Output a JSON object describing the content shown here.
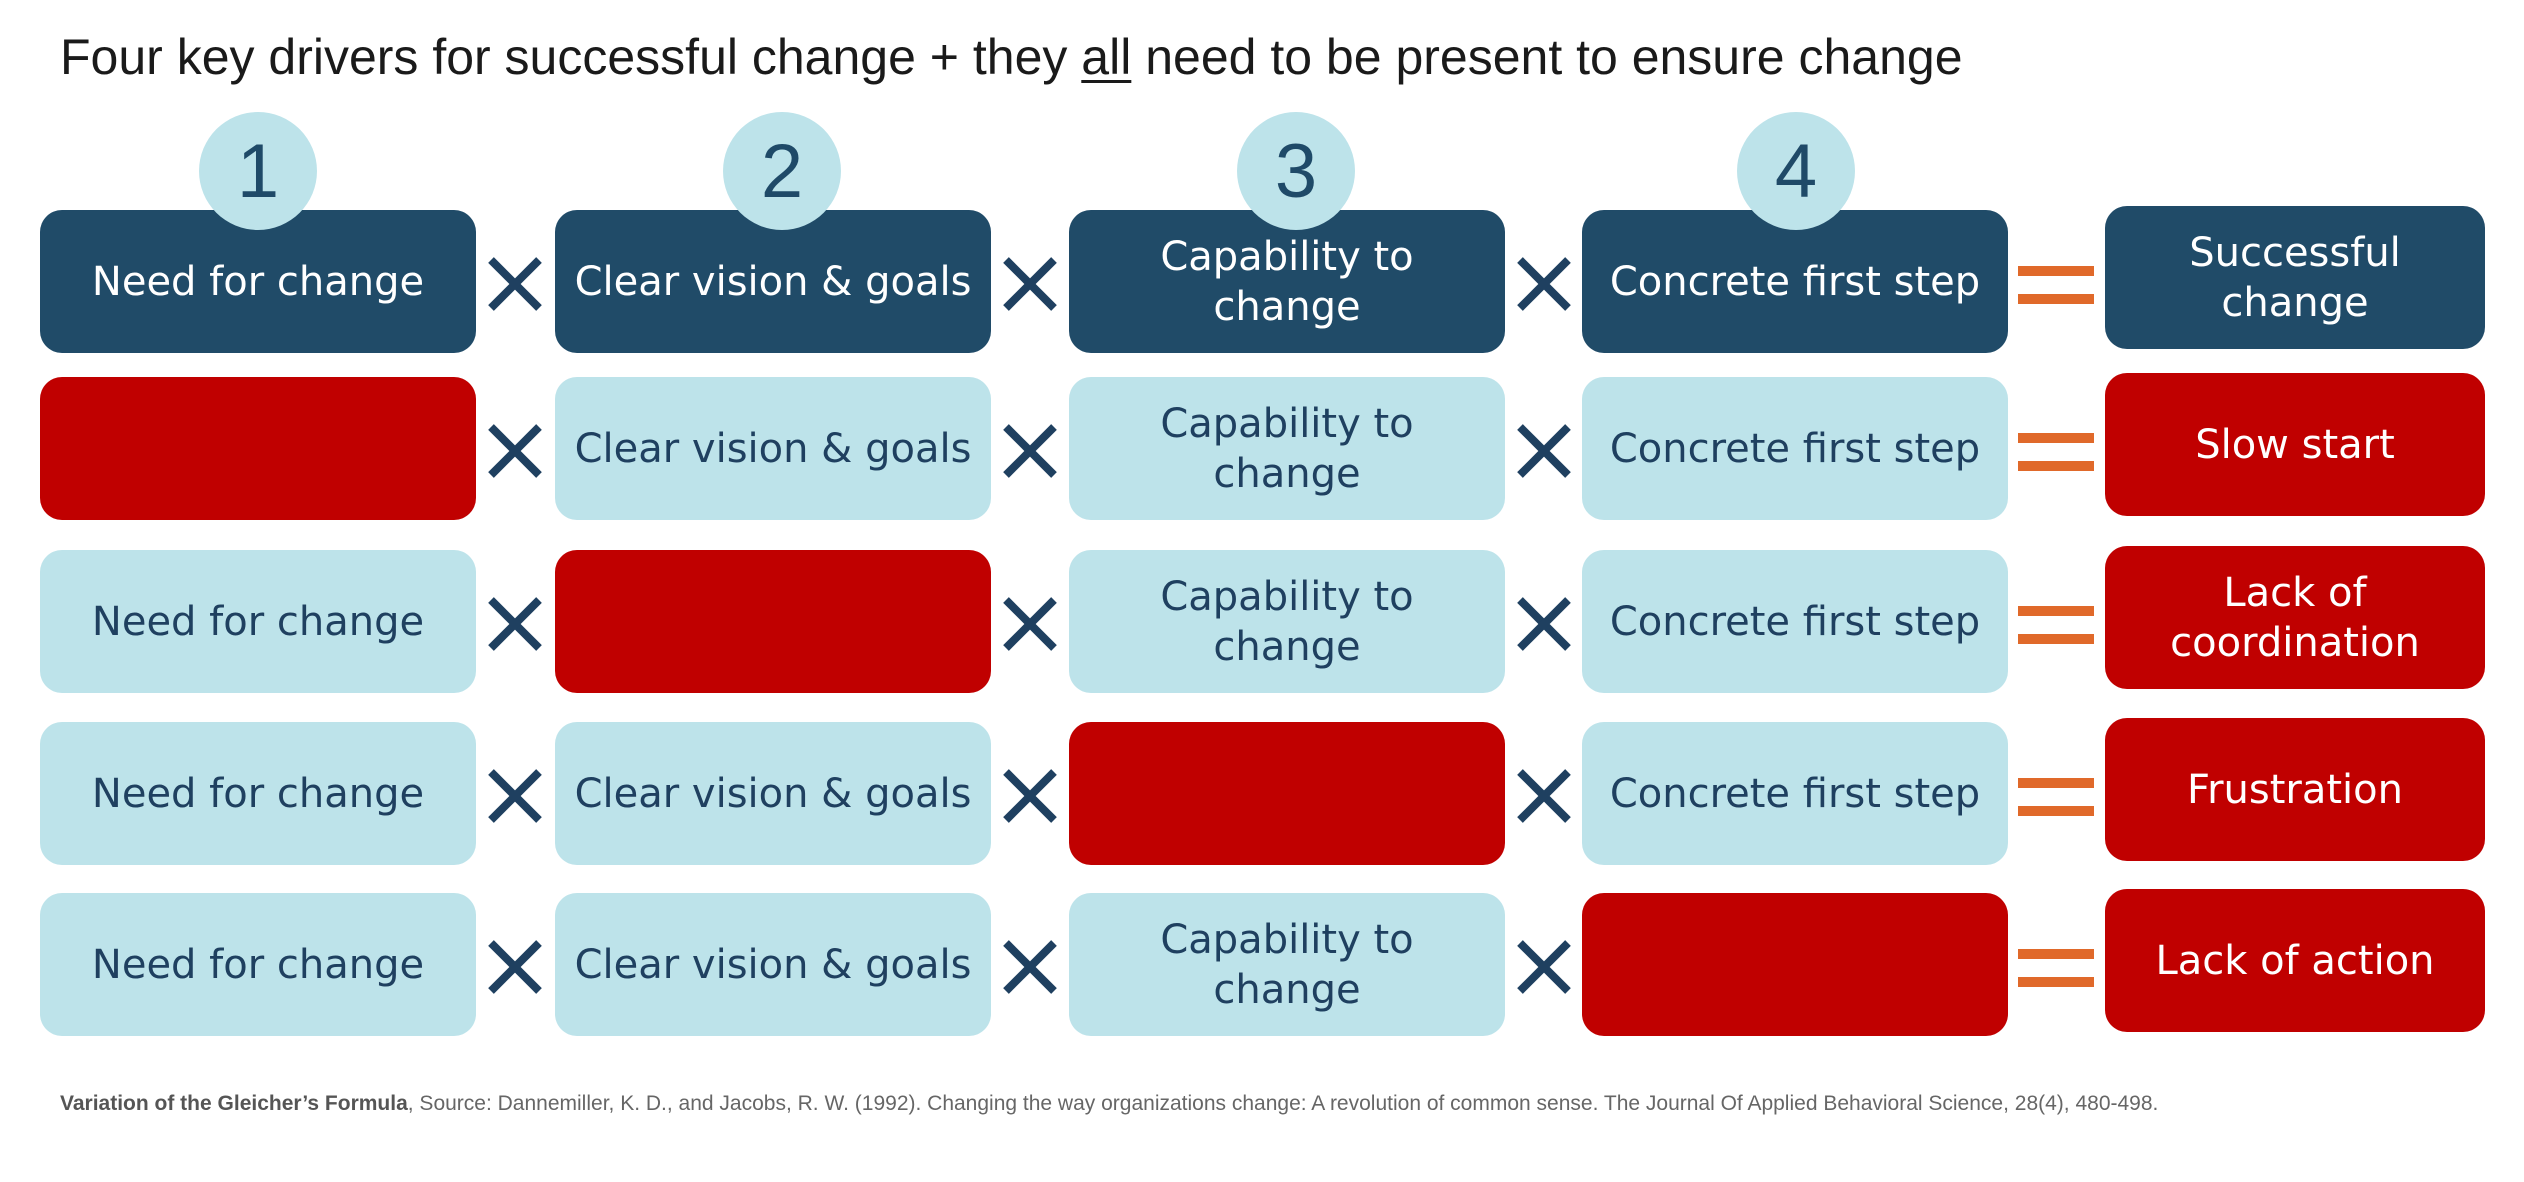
{
  "title": {
    "before": "Four key drivers for successful change + they ",
    "emphasis": "all",
    "after": " need to be present to ensure change"
  },
  "badges": [
    "1",
    "2",
    "3",
    "4"
  ],
  "rows": [
    {
      "type": "header",
      "cells": [
        "Need for change",
        "Clear vision & goals",
        "Capability to change",
        "Concrete first step"
      ],
      "missing": -1,
      "result": "Successful change"
    },
    {
      "type": "variant",
      "cells": [
        "",
        "Clear vision & goals",
        "Capability to change",
        "Concrete first step"
      ],
      "missing": 0,
      "result": "Slow start"
    },
    {
      "type": "variant",
      "cells": [
        "Need for change",
        "",
        "Capability to change",
        "Concrete first step"
      ],
      "missing": 1,
      "result": "Lack of coordination"
    },
    {
      "type": "variant",
      "cells": [
        "Need for change",
        "Clear vision & goals",
        "",
        "Concrete first step"
      ],
      "missing": 2,
      "result": "Frustration"
    },
    {
      "type": "variant",
      "cells": [
        "Need for change",
        "Clear vision & goals",
        "Capability to change",
        ""
      ],
      "missing": 3,
      "result": "Lack of action"
    }
  ],
  "operators": {
    "multiply": "times-icon",
    "equals": "equals-icon"
  },
  "colors": {
    "header": "#204b68",
    "light": "#bde3ea",
    "missing": "#c00000",
    "times": "#1f4060",
    "equals": "#e0692a"
  },
  "footnote": {
    "bold": "Variation of the Gleicher’s Formula",
    "rest": ", Source: Dannemiller, K. D., and Jacobs, R. W. (1992). Changing the way organizations change: A revolution of common sense. The Journal Of Applied Behavioral Science, 28(4), 480-498."
  }
}
